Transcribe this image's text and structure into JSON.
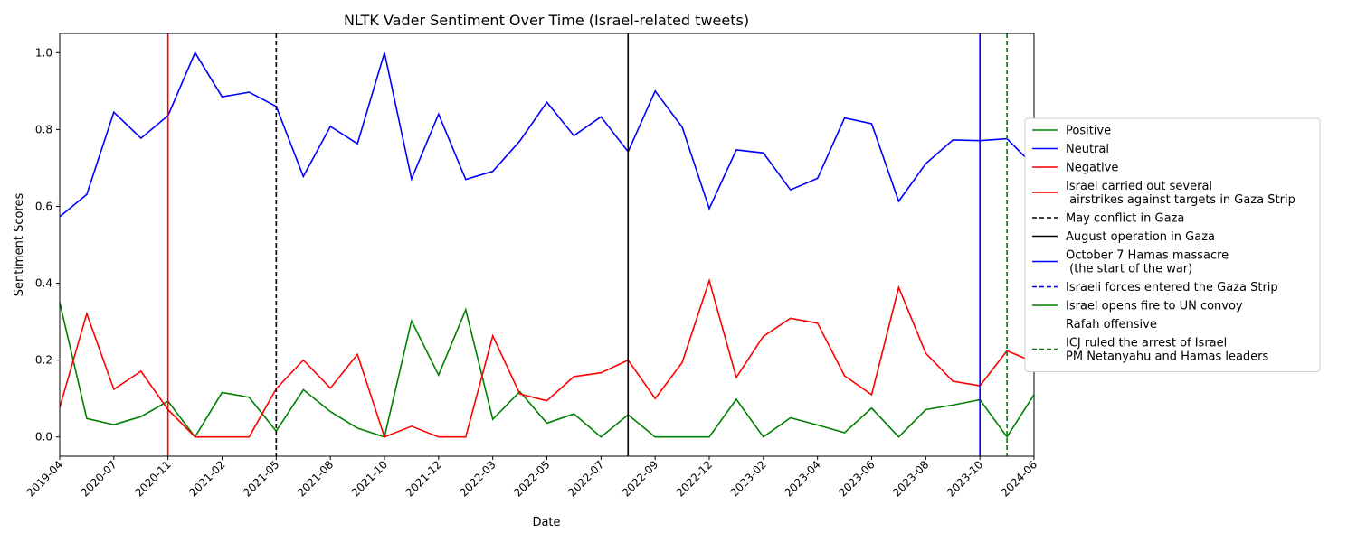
{
  "chart_data": {
    "type": "line",
    "title": "NLTK Vader Sentiment Over Time (Israel-related tweets)",
    "xlabel": "Date",
    "ylabel": "Sentiment Scores",
    "ylim": [
      -0.05,
      1.05
    ],
    "y_ticks": [
      "0.0",
      "0.2",
      "0.4",
      "0.6",
      "0.8",
      "1.0"
    ],
    "x_tick_labels": [
      "2019-04",
      "2020-07",
      "2020-11",
      "2021-02",
      "2021-05",
      "2021-08",
      "2021-10",
      "2021-12",
      "2022-03",
      "2022-05",
      "2022-07",
      "2022-09",
      "2022-12",
      "2023-02",
      "2023-04",
      "2023-06",
      "2023-08",
      "2023-10",
      "2024-06"
    ],
    "legend_position": "right",
    "grid": false,
    "series": [
      {
        "name": "Positive",
        "color": "#008000",
        "values": [
          0.35,
          0.048,
          0.032,
          0.053,
          0.093,
          0.0,
          0.116,
          0.103,
          0.015,
          0.123,
          0.066,
          0.023,
          0.0,
          0.302,
          0.161,
          0.331,
          0.046,
          0.118,
          0.036,
          0.06,
          0.0,
          0.058,
          0.0,
          0.0,
          0.0,
          0.098,
          0.0,
          0.05,
          0.031,
          0.011,
          0.075,
          0.0,
          0.071,
          0.083,
          0.097,
          0.0,
          0.11
        ]
      },
      {
        "name": "Neutral",
        "color": "#0000ff",
        "values": [
          0.573,
          0.631,
          0.845,
          0.777,
          0.836,
          1.0,
          0.885,
          0.897,
          0.86,
          0.678,
          0.808,
          0.763,
          1.0,
          0.671,
          0.84,
          0.67,
          0.691,
          0.77,
          0.871,
          0.784,
          0.833,
          0.742,
          0.9,
          0.806,
          0.594,
          0.747,
          0.739,
          0.643,
          0.673,
          0.83,
          0.815,
          0.613,
          0.711,
          0.773,
          0.771,
          0.776,
          0.705
        ]
      },
      {
        "name": "Negative",
        "color": "#ff0000",
        "values": [
          0.077,
          0.321,
          0.124,
          0.171,
          0.071,
          0.0,
          0.0,
          0.0,
          0.125,
          0.2,
          0.127,
          0.215,
          0.0,
          0.028,
          0.0,
          0.0,
          0.263,
          0.112,
          0.094,
          0.157,
          0.167,
          0.2,
          0.1,
          0.194,
          0.407,
          0.155,
          0.262,
          0.309,
          0.296,
          0.159,
          0.11,
          0.389,
          0.218,
          0.145,
          0.133,
          0.224,
          0.195
        ]
      }
    ],
    "events": [
      {
        "label": "Israel carried out several\n airstrikes against targets in Gaza Strip",
        "color": "#ff0000",
        "style": "solid",
        "index": 4
      },
      {
        "label": "May conflict in Gaza",
        "color": "#000000",
        "style": "dashed",
        "index": 8
      },
      {
        "label": "August operation in Gaza",
        "color": "#000000",
        "style": "solid",
        "index": 21
      },
      {
        "label": "October 7 Hamas massacre\n (the start of the war)",
        "color": "#0000ff",
        "style": "solid",
        "index": 34
      },
      {
        "label": "Israeli forces entered the Gaza Strip",
        "color": "#0000ff",
        "style": "dashed",
        "index": null
      },
      {
        "label": "Israel opens fire to UN convoy",
        "color": "#008000",
        "style": "solid",
        "index": null
      },
      {
        "label": "Rafah offensive",
        "color": "#ffffff",
        "style": "solid",
        "index": null
      },
      {
        "label": "ICJ ruled the arrest of Israel\nPM Netanyahu and Hamas leaders",
        "color": "#008000",
        "style": "dashed",
        "index": 35
      }
    ]
  }
}
